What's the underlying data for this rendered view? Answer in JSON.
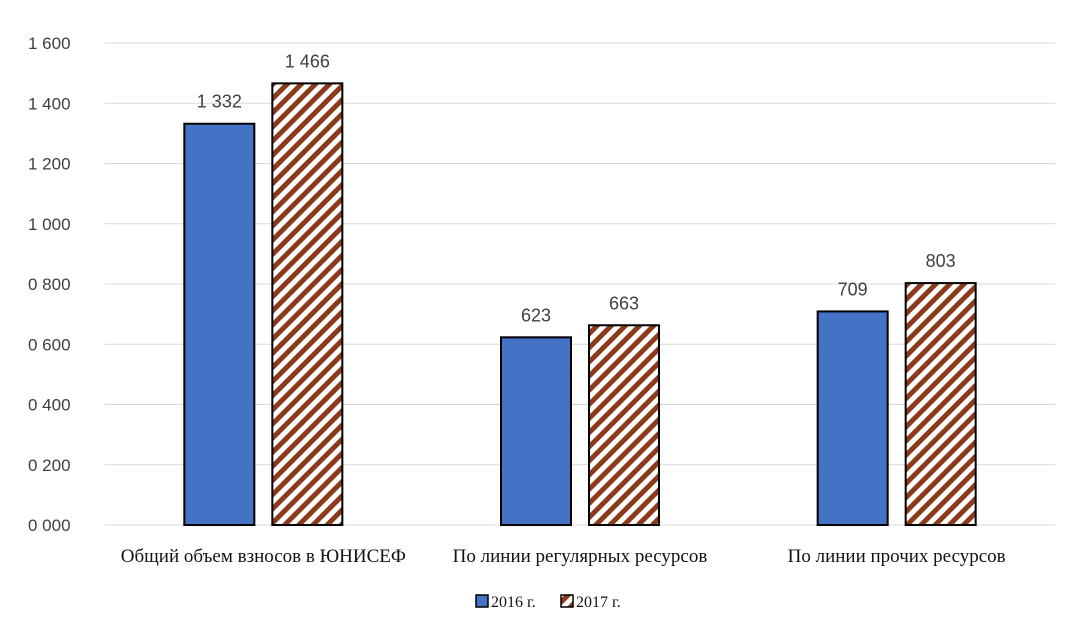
{
  "chart_data": {
    "type": "bar",
    "title": "",
    "xlabel": "",
    "ylabel": "",
    "categories": [
      "Общий объем взносов в ЮНИСЕФ",
      "По линии регулярных ресурсов",
      "По линии прочих ресурсов"
    ],
    "series": [
      {
        "name": "2016 г.",
        "values": [
          1332,
          623,
          709
        ],
        "value_labels": [
          "1 332",
          "623",
          "709"
        ],
        "color": "#4472C4",
        "pattern": "solid"
      },
      {
        "name": "2017 г.",
        "values": [
          1466,
          663,
          803
        ],
        "value_labels": [
          "1 466",
          "663",
          "803"
        ],
        "color": "#8B3A1A",
        "pattern": "diagonal-stripes"
      }
    ],
    "ylim": [
      0,
      1600
    ],
    "yticks": [
      0,
      200,
      400,
      600,
      800,
      1000,
      1200,
      1400,
      1600
    ],
    "ytick_labels": [
      "0 000",
      "0 200",
      "0 400",
      "0 600",
      "0 800",
      "1 000",
      "1 200",
      "1 400",
      "1 600"
    ],
    "grid": true,
    "legend_position": "bottom"
  }
}
